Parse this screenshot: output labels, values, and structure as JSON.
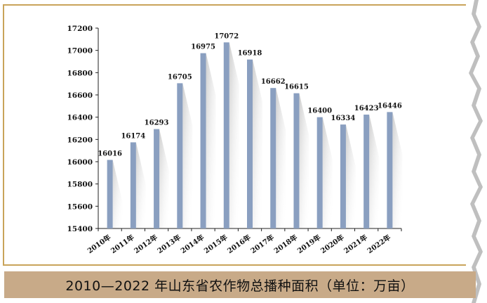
{
  "chart_data": {
    "type": "bar",
    "title": "2010—2022 年山东省农作物总播种面积（单位：万亩）",
    "categories": [
      "2010年",
      "2011年",
      "2012年",
      "2013年",
      "2014年",
      "2015年",
      "2016年",
      "2017年",
      "2018年",
      "2019年",
      "2020年",
      "2021年",
      "2022年"
    ],
    "values": [
      16016,
      16174,
      16293,
      16705,
      16975,
      17072,
      16918,
      16662,
      16615,
      16400,
      16334,
      16423,
      16446
    ],
    "ylim": [
      15400,
      17200
    ],
    "yticks": [
      15400,
      15600,
      15800,
      16000,
      16200,
      16400,
      16600,
      16800,
      17000,
      17200
    ],
    "xlabel": "",
    "ylabel": "",
    "colors": {
      "bar": "#8a9fc0",
      "shadow": "#d9d9d9",
      "frame": "#c9a45a",
      "caption_bg": "#c8aa88"
    }
  }
}
